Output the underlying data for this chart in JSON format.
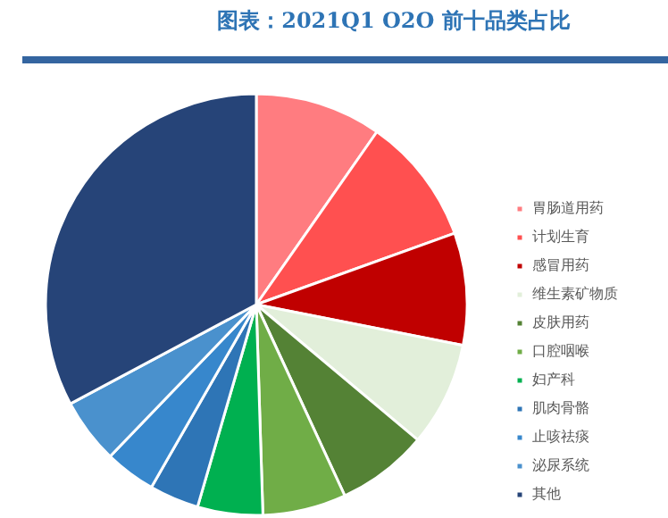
{
  "chart_data": {
    "type": "pie",
    "title": "图表：2021Q1 O2O 前十品类占比",
    "categories": [
      "胃肠道用药",
      "计划生育",
      "感冒用药",
      "维生素矿物质",
      "皮肤用药",
      "口腔咽喉",
      "妇产科",
      "肌肉骨骼",
      "止咳祛痰",
      "泌尿系统",
      "其他"
    ],
    "values": [
      9.7,
      9.8,
      8.6,
      8.0,
      7.0,
      6.4,
      5.0,
      3.8,
      3.9,
      5.0,
      32.8
    ],
    "colors": [
      "#ff7c80",
      "#ff5050",
      "#c00000",
      "#e2efda",
      "#548235",
      "#70ad47",
      "#00b050",
      "#2e75b6",
      "#3787cc",
      "#4a91cd",
      "#264478"
    ],
    "legend": "right"
  }
}
